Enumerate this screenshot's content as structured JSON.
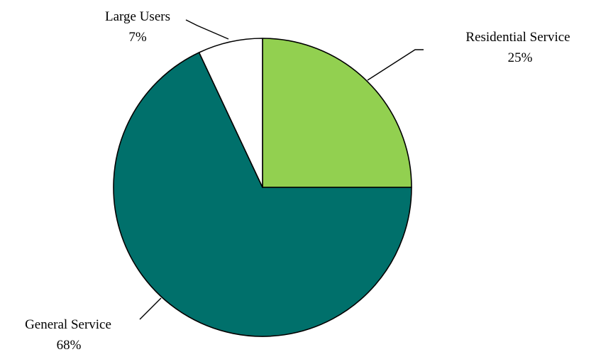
{
  "chart_data": {
    "type": "pie",
    "title": "",
    "start_angle_deg": 0,
    "direction": "clockwise",
    "slices": [
      {
        "name": "Residential Service",
        "value": 25,
        "value_label": "25%",
        "color": "#92d050"
      },
      {
        "name": "General Service",
        "value": 68,
        "value_label": "68%",
        "color": "#00706b"
      },
      {
        "name": "Large Users",
        "value": 7,
        "value_label": "7%",
        "color": "#ffffff"
      }
    ],
    "slice_border_color": "#000000",
    "legend": "none"
  }
}
